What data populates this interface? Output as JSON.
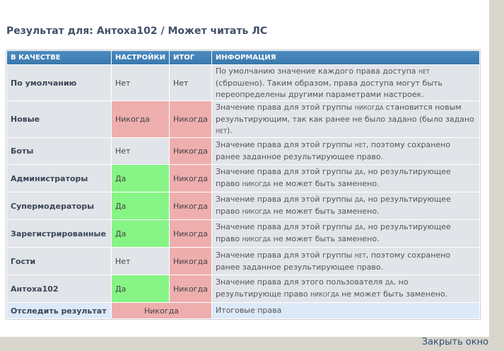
{
  "title": "Результат для: Антоха102 / Может читать ЛС",
  "headers": [
    "В КАЧЕСТВЕ",
    "НАСТРОЙКИ",
    "ИТОГ",
    "ИНФОРМАЦИЯ"
  ],
  "rows": [
    {
      "label": "По умолчанию",
      "setting": "Нет",
      "result": "Нет",
      "setting_status": "neutral",
      "result_status": "neutral",
      "info": [
        [
          "По умолчанию значение каждого права доступа ",
          ""
        ],
        [
          "нет",
          "sc"
        ],
        [
          " (сброшено). Таким образом, права доступа могут быть переопределены другими параметрами настроек.",
          ""
        ]
      ]
    },
    {
      "label": "Новые",
      "setting": "Никогда",
      "result": "Никогда",
      "setting_status": "never",
      "result_status": "never",
      "info": [
        [
          "Значение права для этой группы ",
          ""
        ],
        [
          "никогда",
          "sc"
        ],
        [
          " становится новым результирующим, так как ранее не было задано (было задано ",
          ""
        ],
        [
          "нет",
          "sc"
        ],
        [
          ").",
          ""
        ]
      ]
    },
    {
      "label": "Боты",
      "setting": "Нет",
      "result": "Никогда",
      "setting_status": "neutral",
      "result_status": "never",
      "info": [
        [
          "Значение права для этой группы ",
          ""
        ],
        [
          "нет",
          "sc"
        ],
        [
          ", поэтому сохранено ранее заданное результирующее право.",
          ""
        ]
      ]
    },
    {
      "label": "Администраторы",
      "setting": "Да",
      "result": "Никогда",
      "setting_status": "yes",
      "result_status": "never",
      "info": [
        [
          "Значение права для этой группы ",
          ""
        ],
        [
          "да",
          "sc"
        ],
        [
          ", но результирующее право ",
          ""
        ],
        [
          "никогда",
          "sc"
        ],
        [
          " не может быть заменено.",
          ""
        ]
      ]
    },
    {
      "label": "Супермодераторы",
      "setting": "Да",
      "result": "Никогда",
      "setting_status": "yes",
      "result_status": "never",
      "info": [
        [
          "Значение права для этой группы ",
          ""
        ],
        [
          "да",
          "sc"
        ],
        [
          ", но результирующее право ",
          ""
        ],
        [
          "никогда",
          "sc"
        ],
        [
          " не может быть заменено.",
          ""
        ]
      ]
    },
    {
      "label": "Зарегистрированные",
      "setting": "Да",
      "result": "Никогда",
      "setting_status": "yes",
      "result_status": "never",
      "info": [
        [
          "Значение права для этой группы ",
          ""
        ],
        [
          "да",
          "sc"
        ],
        [
          ", но результирующее право ",
          ""
        ],
        [
          "никогда",
          "sc"
        ],
        [
          " не может быть заменено.",
          ""
        ]
      ]
    },
    {
      "label": "Гости",
      "setting": "Нет",
      "result": "Никогда",
      "setting_status": "neutral",
      "result_status": "never",
      "info": [
        [
          "Значение права для этой группы ",
          ""
        ],
        [
          "нет",
          "sc"
        ],
        [
          ", поэтому сохранено ранее заданное результирующее право.",
          ""
        ]
      ]
    },
    {
      "label": "Антоха102",
      "setting": "Да",
      "result": "Никогда",
      "setting_status": "yes",
      "result_status": "never",
      "info": [
        [
          "Значение права для этого пользователя ",
          ""
        ],
        [
          "да",
          "sc"
        ],
        [
          ", но результирующе право ",
          ""
        ],
        [
          "никогда",
          "sc"
        ],
        [
          " не может быть заменено.",
          ""
        ]
      ]
    }
  ],
  "trace": {
    "label": "Отследить результат",
    "value": "Никогда",
    "info": "Итоговые права"
  },
  "close_link": "Закрыть окно",
  "colors": {
    "never": "#efaeae",
    "yes": "#86f585",
    "header": "#3f7fb4"
  }
}
